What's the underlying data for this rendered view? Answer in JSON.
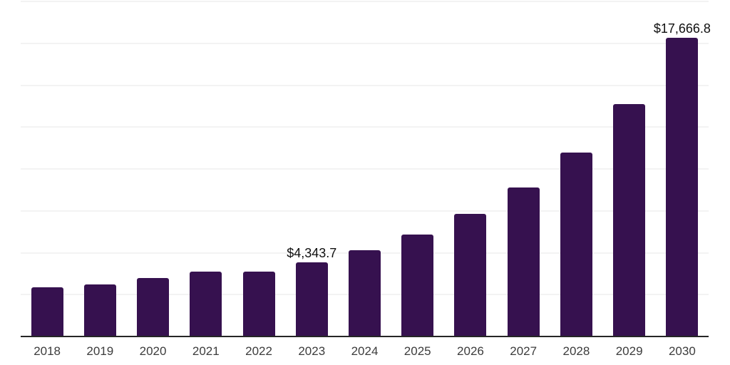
{
  "chart_data": {
    "type": "bar",
    "title": "",
    "xlabel": "",
    "ylabel": "",
    "categories": [
      "2018",
      "2019",
      "2020",
      "2021",
      "2022",
      "2023",
      "2024",
      "2025",
      "2026",
      "2027",
      "2028",
      "2029",
      "2030"
    ],
    "values": [
      2890,
      3060,
      3440,
      3800,
      3790,
      4343.7,
      5090,
      6000,
      7240,
      8780,
      10890,
      13740,
      17666.8
    ],
    "value_labels": [
      "",
      "",
      "",
      "",
      "",
      "$4,343.7",
      "",
      "",
      "",
      "",
      "",
      "",
      "$17,666.8"
    ],
    "ylim": [
      0,
      19900
    ],
    "grid": "horizontal-only",
    "gridline_count": 8,
    "legend": "none",
    "colors": {
      "bar": "#36114F",
      "axis": "#262626",
      "gridline": "#F3F3F3",
      "tick_label": "#3C3C3C",
      "value_label": "#101010",
      "background": "#FFFFFF"
    }
  }
}
